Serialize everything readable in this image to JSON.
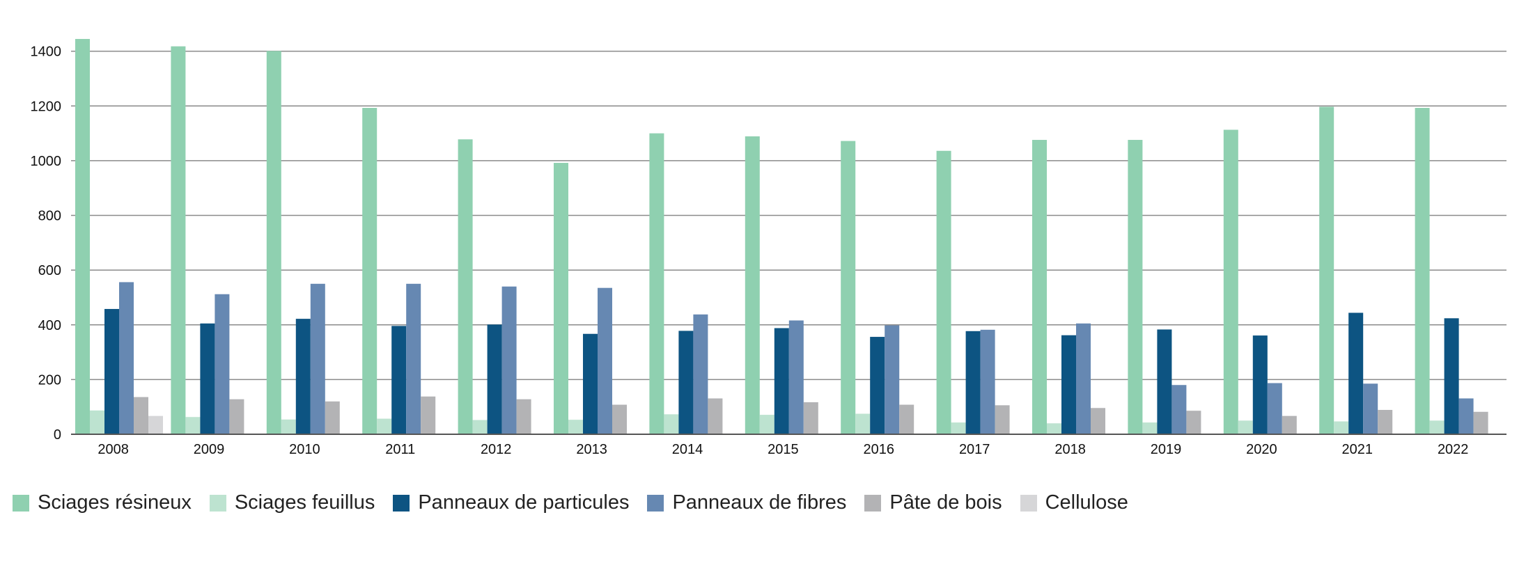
{
  "chart_data": {
    "type": "bar",
    "title": "",
    "xlabel": "",
    "ylabel": "",
    "ylim": [
      0,
      1450
    ],
    "yticks": [
      0,
      200,
      400,
      600,
      800,
      1000,
      1200,
      1400
    ],
    "grid": true,
    "legend_position": "bottom",
    "categories": [
      "2008",
      "2009",
      "2010",
      "2011",
      "2012",
      "2013",
      "2014",
      "2015",
      "2016",
      "2017",
      "2018",
      "2019",
      "2020",
      "2021",
      "2022"
    ],
    "series": [
      {
        "name": "Sciages résineux",
        "color": "#8fd0b0",
        "values": [
          1445,
          1418,
          1401,
          1193,
          1078,
          992,
          1100,
          1089,
          1072,
          1036,
          1076,
          1076,
          1113,
          1197,
          1193
        ]
      },
      {
        "name": "Sciages feuillus",
        "color": "#bde3d0",
        "values": [
          87,
          63,
          54,
          57,
          52,
          53,
          73,
          71,
          75,
          43,
          40,
          43,
          50,
          47,
          50
        ]
      },
      {
        "name": "Panneaux de particules",
        "color": "#0d5482",
        "values": [
          458,
          405,
          422,
          396,
          401,
          367,
          378,
          388,
          356,
          377,
          362,
          383,
          361,
          444,
          424
        ]
      },
      {
        "name": "Panneaux de fibres",
        "color": "#6688b2",
        "values": [
          556,
          512,
          550,
          550,
          540,
          535,
          438,
          416,
          398,
          382,
          405,
          180,
          187,
          185,
          131
        ]
      },
      {
        "name": "Pâte de bois",
        "color": "#b3b3b5",
        "values": [
          136,
          128,
          120,
          138,
          128,
          108,
          131,
          117,
          108,
          106,
          96,
          86,
          67,
          89,
          82
        ]
      },
      {
        "name": "Cellulose",
        "color": "#d6d6d8",
        "values": [
          67,
          0,
          0,
          0,
          0,
          0,
          0,
          0,
          0,
          0,
          0,
          0,
          0,
          0,
          0
        ]
      }
    ]
  }
}
